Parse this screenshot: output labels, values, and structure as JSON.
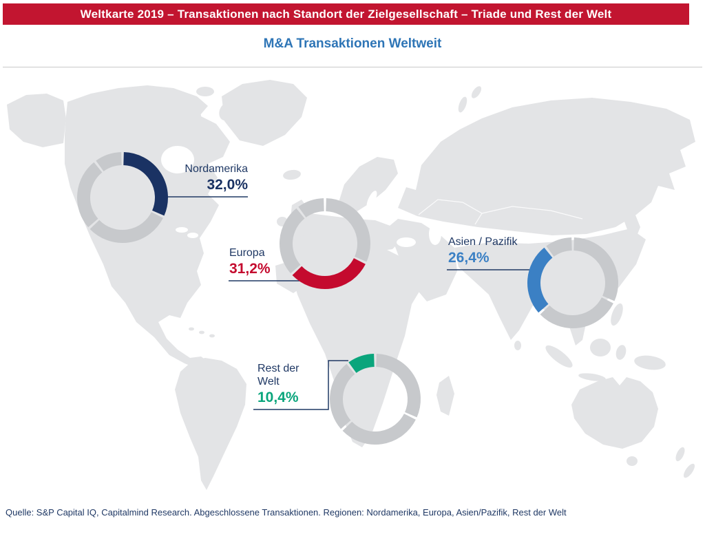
{
  "header": {
    "title": "Weltkarte 2019 – Transaktionen nach Standort der Zielgesellschaft – Triade und Rest der Welt",
    "title_bg": "#c21530",
    "title_text_color": "#ffffff",
    "subtitle": "M&A Transaktionen Weltweit",
    "subtitle_color": "#2e75b6"
  },
  "footer": {
    "source": "Quelle: S&P Capital IQ, Capitalmind Research. Abgeschlossene Transaktionen. Regionen: Nordamerika, Europa, Asien/Pazifik, Rest der Welt"
  },
  "chart_data": {
    "type": "pie",
    "variant": "donut-rings-on-world-map",
    "title": "M&A Transaktionen Weltweit",
    "unit": "percent",
    "categories": [
      "Nordamerika",
      "Europa",
      "Asien / Pazifik",
      "Rest der Welt"
    ],
    "values": [
      32.0,
      31.2,
      26.4,
      10.4
    ],
    "regions": [
      {
        "id": "nordamerika",
        "label": "Nordamerika",
        "value": 32.0,
        "value_text": "32,0%",
        "color": "#1a3263"
      },
      {
        "id": "europa",
        "label": "Europa",
        "value": 31.2,
        "value_text": "31,2%",
        "color": "#c40a2e"
      },
      {
        "id": "asien-pazifik",
        "label": "Asien / Pazifik",
        "value": 26.4,
        "value_text": "26,4%",
        "color": "#3b80c4"
      },
      {
        "id": "rest-der-welt",
        "label": "Rest der Welt",
        "value": 10.4,
        "value_text": "10,4%",
        "color": "#0aa57c"
      }
    ],
    "ring_color_inactive": "#c7c9cc",
    "label_color": "#1f3864",
    "connector_color": "#1f3864",
    "map_color": "#e3e4e6",
    "start_angle": "top",
    "direction": "clockwise"
  }
}
